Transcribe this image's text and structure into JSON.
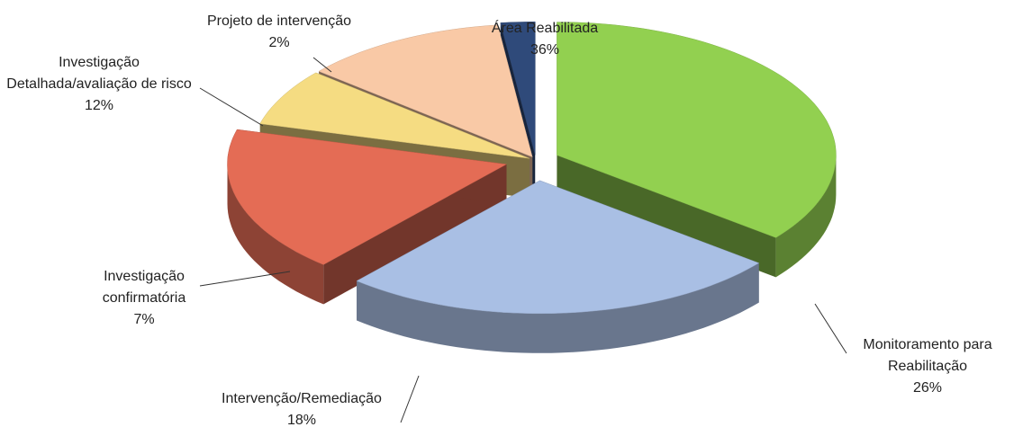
{
  "chart_data": {
    "type": "pie",
    "categories": [
      "Área Reabilitada",
      "Monitoramento para Reabilitação",
      "Intervenção/Remediação",
      "Investigação confirmatória",
      "Investigação Detalhada/avaliação de risco",
      "Projeto de intervenção"
    ],
    "values": [
      36,
      26,
      18,
      7,
      12,
      2
    ],
    "value_labels": [
      "36%",
      "26%",
      "18%",
      "7%",
      "12%",
      "2%"
    ],
    "colors": [
      "#92d050",
      "#a9bfe4",
      "#e46c55",
      "#f5dc82",
      "#f9c9a6",
      "#2f4a7a"
    ]
  }
}
